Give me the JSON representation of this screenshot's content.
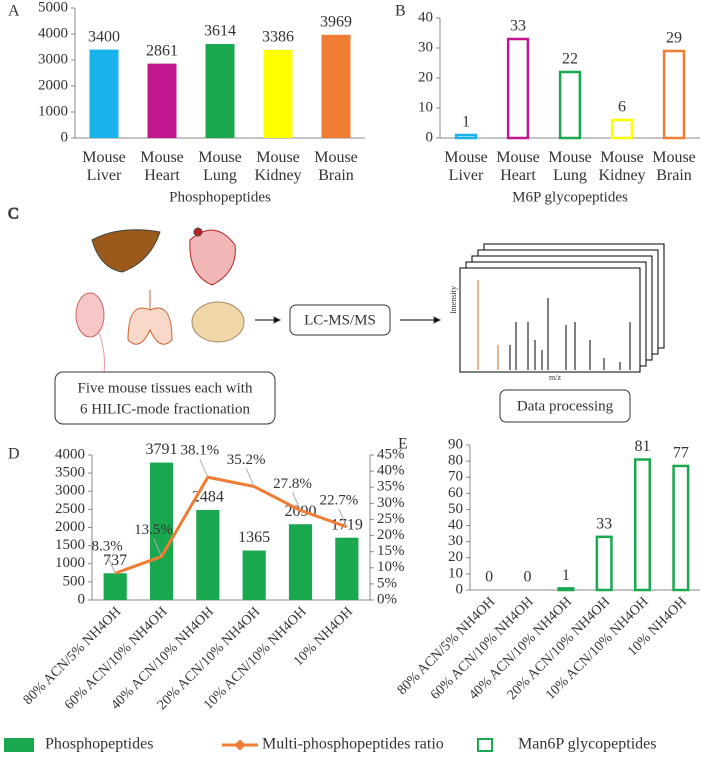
{
  "chart_data": [
    {
      "type": "bar",
      "panel": "A",
      "x_label": "Phosphopeptides",
      "categories": [
        "Mouse Liver",
        "Mouse Heart",
        "Mouse Lung",
        "Mouse Kidney",
        "Mouse Brain"
      ],
      "series": [
        {
          "name": "Phosphopeptides",
          "colors": [
            "#1ab2ea",
            "#c0168e",
            "#1aa84f",
            "#ffff00",
            "#f07d33"
          ],
          "hollow": false,
          "values": [
            3400,
            2861,
            3614,
            3386,
            3969
          ]
        }
      ],
      "ylim": [
        0,
        5000
      ],
      "yticks": [
        0,
        1000,
        2000,
        3000,
        4000,
        5000
      ]
    },
    {
      "type": "bar",
      "panel": "B",
      "x_label": "M6P glycopeptides",
      "categories": [
        "Mouse Liver",
        "Mouse Heart",
        "Mouse Lung",
        "Mouse Kidney",
        "Mouse Brain"
      ],
      "series": [
        {
          "name": "M6P glycopeptides",
          "colors": [
            "#1ab2ea",
            "#c0168e",
            "#1aa84f",
            "#ffff00",
            "#f07d33"
          ],
          "hollow": true,
          "values": [
            1,
            33,
            22,
            6,
            29
          ]
        }
      ],
      "ylim": [
        0,
        40
      ],
      "yticks": [
        0,
        10,
        20,
        30,
        40
      ]
    },
    {
      "type": "bar",
      "panel": "D",
      "categories": [
        "80% ACN/5% NH4OH",
        "60% ACN/10% NH4OH",
        "40% ACN/10% NH4OH",
        "20% ACN/10% NH4OH",
        "10% ACN/10% NH4OH",
        "10% NH4OH"
      ],
      "series": [
        {
          "name": "Phosphopeptides",
          "color": "#1aa84f",
          "hollow": false,
          "values": [
            737,
            3791,
            2484,
            1365,
            2090,
            1719
          ]
        },
        {
          "name": "Multi-phosphopeptides ratio",
          "type": "line",
          "axis": "y2",
          "color": "#f07d33",
          "values": [
            8.3,
            13.5,
            38.1,
            35.2,
            27.8,
            22.7
          ],
          "value_labels": [
            "8.3%",
            "13.5%",
            "38.1%",
            "35.2%",
            "27.8%",
            "22.7%"
          ]
        }
      ],
      "ylim": [
        0,
        4000
      ],
      "yticks": [
        0,
        500,
        1000,
        1500,
        2000,
        2500,
        3000,
        3500,
        4000
      ],
      "y2lim": [
        0,
        45
      ],
      "y2ticks": [
        {
          "value": 0,
          "label": "0%"
        },
        {
          "value": 5,
          "label": "5%"
        },
        {
          "value": 10,
          "label": "10%"
        },
        {
          "value": 15,
          "label": "15%"
        },
        {
          "value": 20,
          "label": "20%"
        },
        {
          "value": 25,
          "label": "25%"
        },
        {
          "value": 30,
          "label": "30%"
        },
        {
          "value": 35,
          "label": "35%"
        },
        {
          "value": 40,
          "label": "40%"
        },
        {
          "value": 45,
          "label": "45%"
        }
      ]
    },
    {
      "type": "bar",
      "panel": "E",
      "categories": [
        "80% ACN/5% NH4OH",
        "60% ACN/10% NH4OH",
        "40% ACN/10% NH4OH",
        "20% ACN/10% NH4OH",
        "10% ACN/10% NH4OH",
        "10% NH4OH"
      ],
      "series": [
        {
          "name": "Man6P glycopeptides",
          "color": "#1aa84f",
          "hollow": true,
          "values": [
            0,
            0,
            1,
            33,
            81,
            77
          ]
        }
      ],
      "ylim": [
        0,
        90
      ],
      "yticks": [
        0,
        10,
        20,
        30,
        40,
        50,
        60,
        70,
        80,
        90
      ]
    }
  ],
  "diagram": {
    "panel": "C",
    "instrument": "LC-MS/MS",
    "samples": [
      "Five mouse tissues each with",
      "6 HILIC-mode fractionation"
    ],
    "output": "Data processing",
    "spectrum_axes": {
      "y": "Intensity",
      "x": "m/z"
    }
  }
}
